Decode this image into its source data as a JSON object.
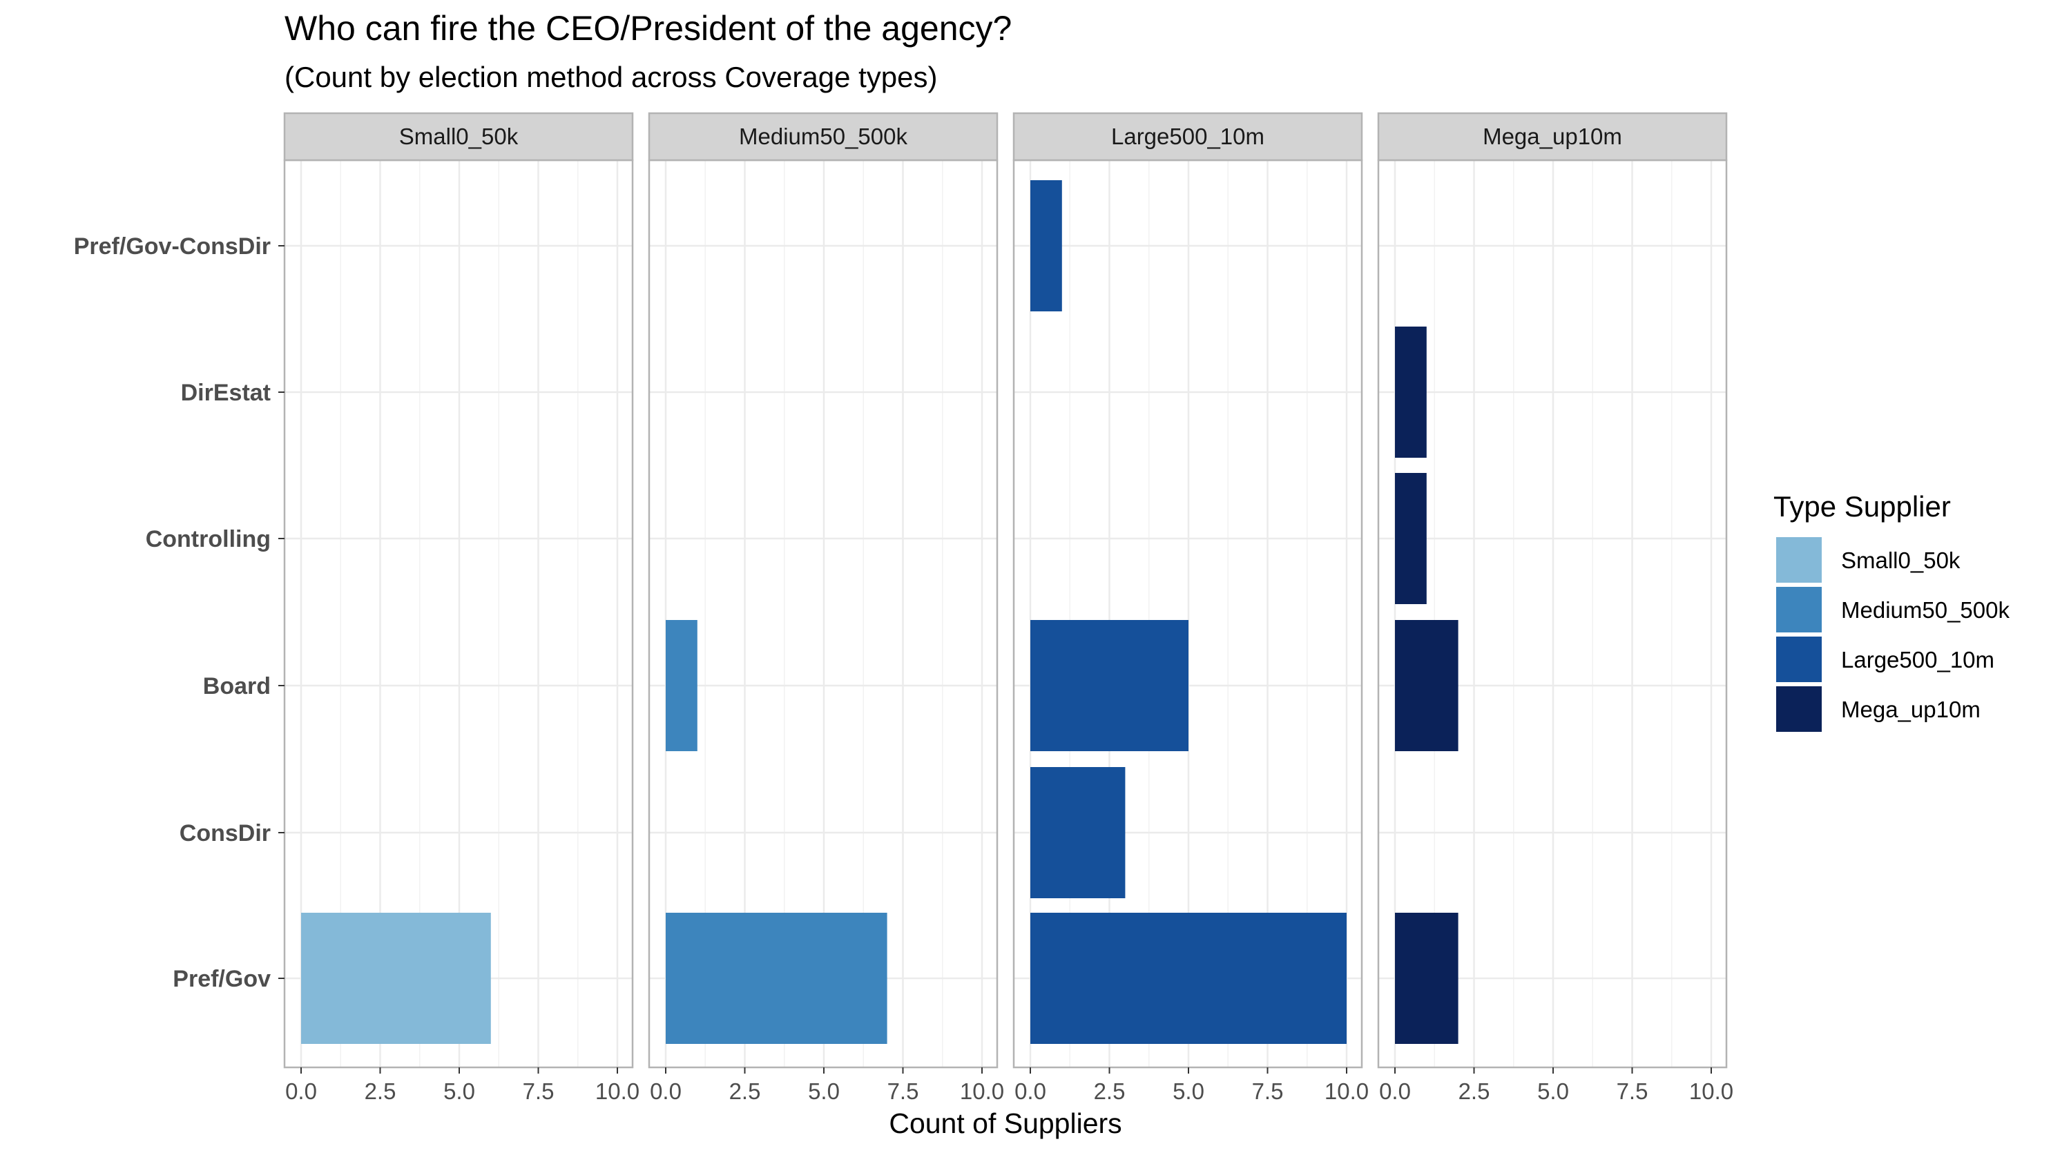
{
  "chart_data": {
    "type": "bar",
    "orientation": "horizontal",
    "faceted": true,
    "title": "Who can fire the CEO/President of the agency?",
    "subtitle": "(Count by election method across Coverage types)",
    "xlabel": "Count of Suppliers",
    "ylabel": "",
    "xlim": [
      0,
      10
    ],
    "x_ticks": [
      "0.0",
      "2.5",
      "5.0",
      "7.5",
      "10.0"
    ],
    "categories": [
      "Pref/Gov-ConsDir",
      "DirEstat",
      "Controlling",
      "Board",
      "ConsDir",
      "Pref/Gov"
    ],
    "legend": {
      "title": "Type Supplier",
      "position": "right",
      "items": [
        {
          "label": "Small0_50k",
          "color": "#84b9d8"
        },
        {
          "label": "Medium50_500k",
          "color": "#3d85bd"
        },
        {
          "label": "Large500_10m",
          "color": "#15509a"
        },
        {
          "label": "Mega_up10m",
          "color": "#0b2259"
        }
      ]
    },
    "panels": [
      {
        "name": "Small0_50k",
        "color": "#84b9d8",
        "values": [
          0,
          0,
          0,
          0,
          0,
          6
        ]
      },
      {
        "name": "Medium50_500k",
        "color": "#3d85bd",
        "values": [
          0,
          0,
          0,
          1,
          0,
          7
        ]
      },
      {
        "name": "Large500_10m",
        "color": "#15509a",
        "values": [
          1,
          0,
          0,
          5,
          3,
          10
        ]
      },
      {
        "name": "Mega_up10m",
        "color": "#0b2259",
        "values": [
          0,
          1,
          1,
          2,
          0,
          2
        ]
      }
    ],
    "grid": true
  }
}
